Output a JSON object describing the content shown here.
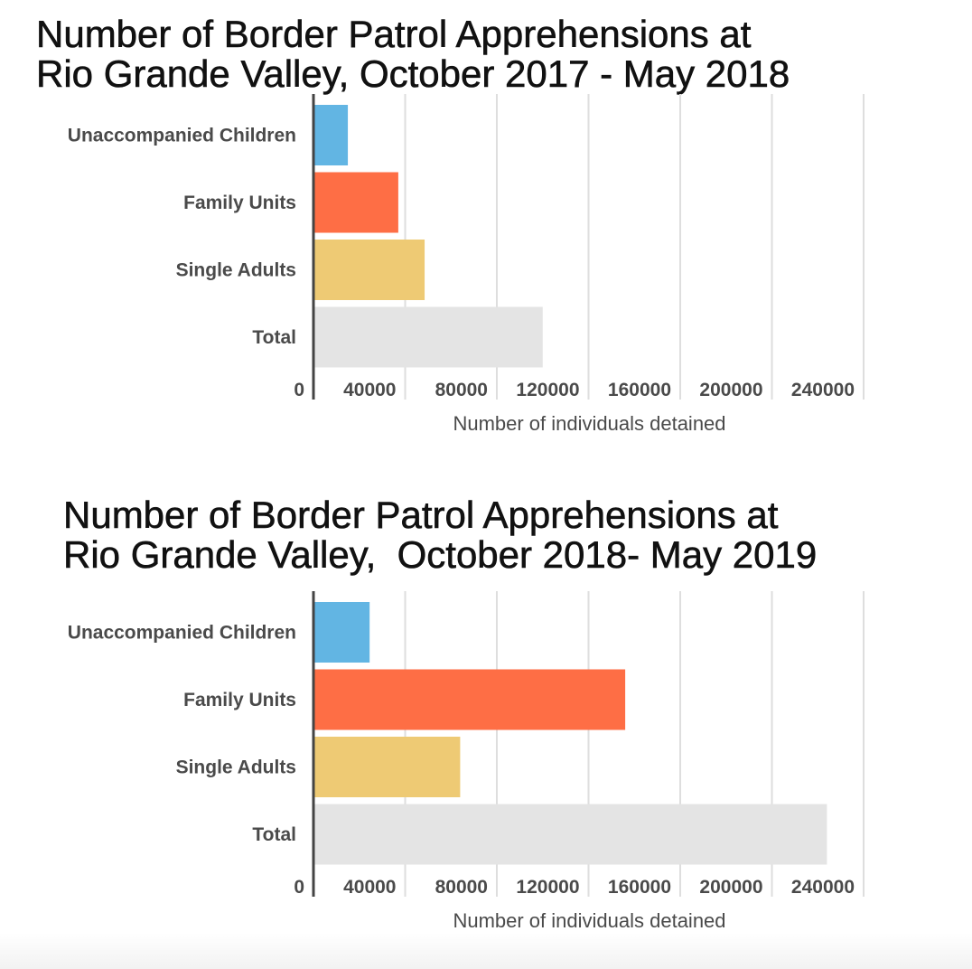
{
  "chart_data": [
    {
      "type": "bar",
      "orientation": "horizontal",
      "title": "Number of Border Patrol Apprehensions at\nRio Grande Valley, October 2017 - May 2018",
      "categories": [
        "Unaccompanied Children",
        "Family Units",
        "Single Adults",
        "Total"
      ],
      "values": [
        15000,
        37000,
        48500,
        100000
      ],
      "colors": [
        "#62b5e3",
        "#fe6e45",
        "#eeca74",
        "#e4e4e4"
      ],
      "xlabel": "Number of individuals detained",
      "ylabel": "",
      "xlim": [
        0,
        240000
      ],
      "gridlines": [
        40000,
        80000,
        120000,
        160000,
        200000,
        240000
      ],
      "ticks": [
        {
          "value": 0,
          "label": "0"
        },
        {
          "value": 40000,
          "label": "40000"
        },
        {
          "value": 80000,
          "label": "80000"
        },
        {
          "value": 120000,
          "label": "120000"
        },
        {
          "value": 160000,
          "label": "160000"
        },
        {
          "value": 200000,
          "label": "200000"
        },
        {
          "value": 240000,
          "label": "240000"
        }
      ],
      "grid": true
    },
    {
      "type": "bar",
      "orientation": "horizontal",
      "title": "Number of Border Patrol Apprehensions at\nRio Grande Valley,  October 2018- May 2019",
      "categories": [
        "Unaccompanied Children",
        "Family Units",
        "Single Adults",
        "Total"
      ],
      "values": [
        24500,
        136000,
        64000,
        224000
      ],
      "colors": [
        "#62b5e3",
        "#fe6e45",
        "#eeca74",
        "#e4e4e4"
      ],
      "xlabel": "Number of individuals detained",
      "ylabel": "",
      "xlim": [
        0,
        240000
      ],
      "gridlines": [
        40000,
        80000,
        120000,
        160000,
        200000,
        240000
      ],
      "ticks": [
        {
          "value": 0,
          "label": "0"
        },
        {
          "value": 40000,
          "label": "40000"
        },
        {
          "value": 80000,
          "label": "80000"
        },
        {
          "value": 120000,
          "label": "120000"
        },
        {
          "value": 160000,
          "label": "160000"
        },
        {
          "value": 200000,
          "label": "200000"
        },
        {
          "value": 240000,
          "label": "240000"
        }
      ],
      "grid": true
    }
  ]
}
